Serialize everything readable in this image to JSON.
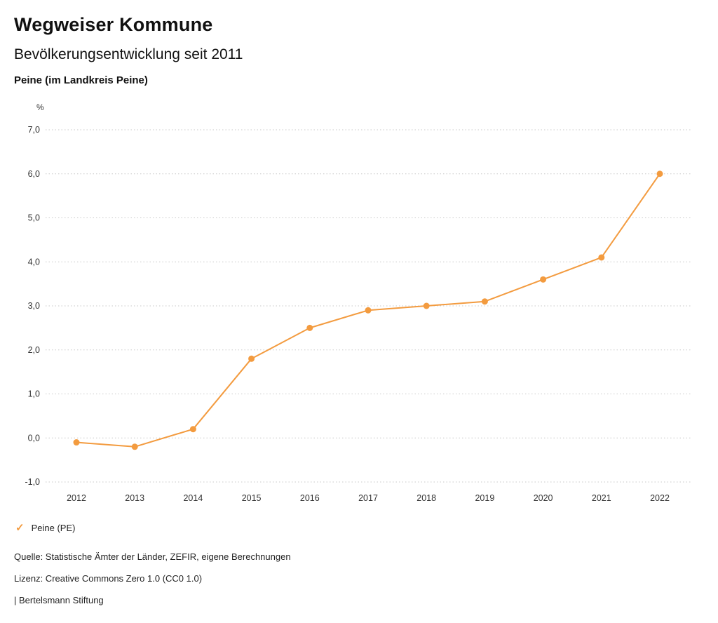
{
  "header": {
    "title": "Wegweiser Kommune",
    "subtitle": "Bevölkerungsentwicklung seit 2011",
    "region": "Peine (im Landkreis Peine)"
  },
  "chart_data": {
    "type": "line",
    "title": "Bevölkerungsentwicklung seit 2011",
    "xlabel": "",
    "ylabel": "%",
    "x": [
      "2012",
      "2013",
      "2014",
      "2015",
      "2016",
      "2017",
      "2018",
      "2019",
      "2020",
      "2021",
      "2022"
    ],
    "series": [
      {
        "name": "Peine (PE)",
        "color": "#f39b3f",
        "values": [
          -0.1,
          -0.2,
          0.2,
          1.8,
          2.5,
          2.9,
          3.0,
          3.1,
          3.6,
          4.1,
          6.0
        ]
      }
    ],
    "ylim": [
      -1.0,
      7.0
    ],
    "ytick_step": 1.0,
    "ytick_labels": [
      "-1,0",
      "0,0",
      "1,0",
      "2,0",
      "3,0",
      "4,0",
      "5,0",
      "6,0",
      "7,0"
    ],
    "decimal_separator": ",",
    "grid": "horizontal-dotted",
    "legend_position": "bottom-left",
    "marker": "filled-circle"
  },
  "legend": {
    "check_glyph": "✓"
  },
  "footer": {
    "source": "Quelle: Statistische Ämter der Länder, ZEFIR, eigene Berechnungen",
    "license": "Lizenz: Creative Commons Zero 1.0 (CC0 1.0)",
    "attribution": "| Bertelsmann Stiftung"
  },
  "colors": {
    "series_line": "#f39b3f",
    "gridline": "#c8c8c8",
    "text": "#111111",
    "tick_text": "#333333",
    "background": "#ffffff"
  }
}
